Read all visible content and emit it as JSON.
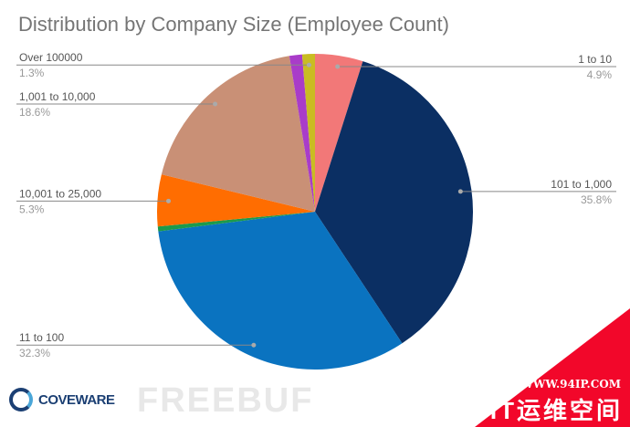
{
  "chart_data": {
    "type": "pie",
    "title": "Distribution by Company Size (Employee Count)",
    "slices": [
      {
        "label": "1 to 10",
        "value": 4.9,
        "pct_label": "4.9%",
        "color": "#f27878",
        "show_label": true
      },
      {
        "label": "101 to 1,000",
        "value": 35.8,
        "pct_label": "35.8%",
        "color": "#0b2f63",
        "show_label": true
      },
      {
        "label": "11 to 100",
        "value": 32.3,
        "pct_label": "32.3%",
        "color": "#0a73c0",
        "show_label": true
      },
      {
        "label": "",
        "value": 0.5,
        "pct_label": "",
        "color": "#1c9a4c",
        "show_label": false
      },
      {
        "label": "10,001 to 25,000",
        "value": 5.3,
        "pct_label": "5.3%",
        "color": "#ff6d01",
        "show_label": true
      },
      {
        "label": "1,001 to 10,000",
        "value": 18.6,
        "pct_label": "18.6%",
        "color": "#c99076",
        "show_label": true
      },
      {
        "label": "",
        "value": 1.3,
        "pct_label": "",
        "color": "#a93cc9",
        "show_label": false
      },
      {
        "label": "Over 100000",
        "value": 1.3,
        "pct_label": "1.3%",
        "color": "#c9bc22",
        "show_label": true
      }
    ],
    "legend": "none (leader-line labels)"
  },
  "branding": {
    "logo": "COVEWARE",
    "watermark": "FREEBUF",
    "site": "WWW.94IP.COM",
    "site_name": "IT运维空间"
  }
}
